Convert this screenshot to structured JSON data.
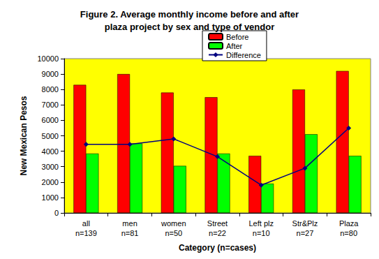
{
  "chart_data": {
    "type": "bar",
    "title": "Figure 2. Average monthly income before and after\nplaza project by sex and type of vendor",
    "x_label": "Category (n=cases)",
    "y_label": "New Mexican Pesos",
    "categories": [
      "all\nn=139",
      "men\nn=81",
      "women\nn=50",
      "Street\nn=22",
      "Left plz\nn=10",
      "Str&Plz\nn=27",
      "Plaza\nn=80"
    ],
    "series": [
      {
        "name": "Before",
        "type": "bar",
        "color": "#ff0000",
        "values": [
          8300,
          9000,
          7800,
          7500,
          3700,
          8000,
          9200
        ]
      },
      {
        "name": "After",
        "type": "bar",
        "color": "#00ff00",
        "values": [
          3850,
          4500,
          3050,
          3850,
          1900,
          5100,
          3700
        ]
      },
      {
        "name": "Difference",
        "type": "line",
        "color": "#000080",
        "marker": "diamond",
        "values": [
          4450,
          4450,
          4800,
          3650,
          1800,
          2900,
          5500
        ]
      }
    ],
    "ylim": [
      0,
      10000
    ],
    "yticks": [
      0,
      1000,
      2000,
      3000,
      4000,
      5000,
      6000,
      7000,
      8000,
      9000,
      10000
    ],
    "grid": false,
    "legend": "top"
  }
}
